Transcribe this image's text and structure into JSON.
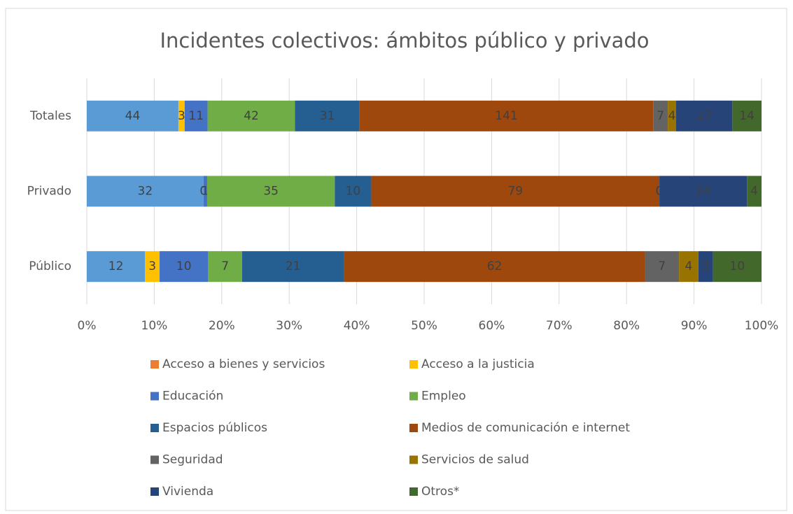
{
  "chart_data": {
    "type": "bar",
    "orientation": "horizontal",
    "stacking": "percent",
    "title": "Incidentes colectivos: ámbitos público y privado",
    "categories": [
      "Totales",
      "Privado",
      "Público"
    ],
    "series": [
      {
        "name": "Acceso a bienes y servicios",
        "color": "#5b9bd5",
        "legend_color": "#ed7d31",
        "values": [
          44,
          32,
          12
        ]
      },
      {
        "name": "Acceso a la justicia",
        "color": "#ffc000",
        "values": [
          3,
          0,
          3
        ]
      },
      {
        "name": "Educación",
        "color": "#4472c4",
        "values": [
          11,
          1,
          10
        ]
      },
      {
        "name": "Empleo",
        "color": "#70ad47",
        "values": [
          42,
          35,
          7
        ]
      },
      {
        "name": "Espacios públicos",
        "color": "#255e91",
        "values": [
          31,
          10,
          21
        ]
      },
      {
        "name": "Medios de comunicación e internet",
        "color": "#9e480e",
        "values": [
          141,
          79,
          62
        ]
      },
      {
        "name": "Seguridad",
        "color": "#636363",
        "values": [
          7,
          0,
          7
        ]
      },
      {
        "name": "Servicios de salud",
        "color": "#997300",
        "values": [
          4,
          0,
          4
        ]
      },
      {
        "name": "Vivienda",
        "color": "#264478",
        "values": [
          27,
          24,
          3
        ]
      },
      {
        "name": "Otros*",
        "color": "#43682b",
        "values": [
          14,
          4,
          10
        ]
      }
    ],
    "xlim": [
      0,
      100
    ],
    "xticks": [
      {
        "value": 0,
        "label": "0%"
      },
      {
        "value": 10,
        "label": "10%"
      },
      {
        "value": 20,
        "label": "20%"
      },
      {
        "value": 30,
        "label": "30%"
      },
      {
        "value": 40,
        "label": "40%"
      },
      {
        "value": 50,
        "label": "50%"
      },
      {
        "value": 60,
        "label": "60%"
      },
      {
        "value": 70,
        "label": "70%"
      },
      {
        "value": 80,
        "label": "80%"
      },
      {
        "value": 90,
        "label": "90%"
      },
      {
        "value": 100,
        "label": "100%"
      }
    ],
    "grid": true,
    "legend": "bottom"
  }
}
